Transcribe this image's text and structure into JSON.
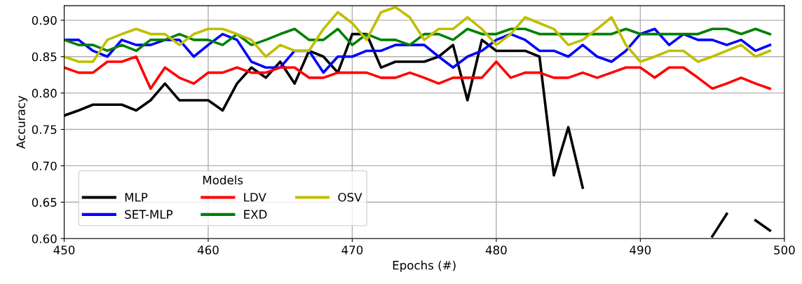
{
  "chart_data": {
    "type": "line",
    "xlabel": "Epochs (#)",
    "ylabel": "Accuracy",
    "legend_title": "Models",
    "x": [
      450,
      451,
      452,
      453,
      454,
      455,
      456,
      457,
      458,
      459,
      460,
      461,
      462,
      463,
      464,
      465,
      466,
      467,
      468,
      469,
      470,
      471,
      472,
      473,
      474,
      475,
      476,
      477,
      478,
      479,
      480,
      481,
      482,
      483,
      484,
      485,
      486,
      487,
      488,
      489,
      490,
      491,
      492,
      493,
      494,
      495,
      496,
      497,
      498,
      499
    ],
    "series": [
      {
        "name": "MLP",
        "color": "#000000",
        "values": [
          0.769,
          0.776,
          0.784,
          0.784,
          0.784,
          0.776,
          0.79,
          0.813,
          0.79,
          0.79,
          0.79,
          0.776,
          0.813,
          0.835,
          0.821,
          0.843,
          0.813,
          0.858,
          0.85,
          0.828,
          0.881,
          0.881,
          0.835,
          0.843,
          0.843,
          0.843,
          0.85,
          0.866,
          0.79,
          0.873,
          0.858,
          0.858,
          0.858,
          0.85,
          0.687,
          0.753,
          0.67,
          null,
          null,
          null,
          null,
          null,
          null,
          null,
          null,
          0.603,
          0.634,
          null,
          0.625,
          0.611
        ]
      },
      {
        "name": "SET-MLP",
        "color": "#0000ff",
        "values": [
          0.873,
          0.873,
          0.858,
          0.85,
          0.873,
          0.866,
          0.866,
          0.873,
          0.873,
          0.85,
          0.866,
          0.881,
          0.873,
          0.843,
          0.835,
          0.835,
          0.858,
          0.858,
          0.828,
          0.85,
          0.85,
          0.858,
          0.858,
          0.866,
          0.866,
          0.866,
          0.85,
          0.835,
          0.85,
          0.858,
          0.873,
          0.881,
          0.873,
          0.858,
          0.858,
          0.85,
          0.866,
          0.85,
          0.843,
          0.858,
          0.881,
          0.888,
          0.866,
          0.881,
          0.873,
          0.873,
          0.866,
          0.873,
          0.858,
          0.866
        ]
      },
      {
        "name": "LDV",
        "color": "#ff0000",
        "values": [
          0.835,
          0.828,
          0.828,
          0.843,
          0.843,
          0.85,
          0.806,
          0.835,
          0.821,
          0.813,
          0.828,
          0.828,
          0.835,
          0.828,
          0.828,
          0.835,
          0.835,
          0.821,
          0.821,
          0.828,
          0.828,
          0.828,
          0.821,
          0.821,
          0.828,
          0.821,
          0.813,
          0.821,
          0.821,
          0.821,
          0.843,
          0.821,
          0.828,
          0.828,
          0.821,
          0.821,
          0.828,
          0.821,
          0.828,
          0.835,
          0.835,
          0.821,
          0.835,
          0.835,
          0.821,
          0.806,
          0.813,
          0.821,
          0.813,
          0.806
        ]
      },
      {
        "name": "EXD",
        "color": "#008000",
        "values": [
          0.873,
          0.866,
          0.866,
          0.858,
          0.866,
          0.858,
          0.873,
          0.873,
          0.881,
          0.873,
          0.873,
          0.866,
          0.881,
          0.866,
          0.873,
          0.881,
          0.888,
          0.873,
          0.873,
          0.888,
          0.866,
          0.881,
          0.873,
          0.873,
          0.866,
          0.881,
          0.881,
          0.873,
          0.888,
          0.881,
          0.881,
          0.888,
          0.888,
          0.881,
          0.881,
          0.881,
          0.881,
          0.881,
          0.881,
          0.888,
          0.881,
          0.881,
          0.881,
          0.881,
          0.881,
          0.888,
          0.888,
          0.881,
          0.888,
          0.881
        ]
      },
      {
        "name": "OSV",
        "color": "#bfbf00",
        "values": [
          0.85,
          0.843,
          0.843,
          0.873,
          0.881,
          0.888,
          0.881,
          0.881,
          0.866,
          0.881,
          0.888,
          0.888,
          0.881,
          0.873,
          0.85,
          0.866,
          0.858,
          0.858,
          0.888,
          0.911,
          0.896,
          0.873,
          0.911,
          0.918,
          0.904,
          0.873,
          0.888,
          0.888,
          0.904,
          0.888,
          0.866,
          0.881,
          0.904,
          0.896,
          0.888,
          0.866,
          0.873,
          0.888,
          0.904,
          0.866,
          0.843,
          0.85,
          0.858,
          0.858,
          0.843,
          0.85,
          0.858,
          0.866,
          0.85,
          0.858
        ]
      }
    ],
    "xlim": [
      450,
      500
    ],
    "ylim": [
      0.6,
      0.92
    ],
    "xticks": [
      450,
      460,
      470,
      480,
      490,
      500
    ],
    "yticks": [
      {
        "value": 0.6,
        "label": "0.60"
      },
      {
        "value": 0.65,
        "label": "0.65"
      },
      {
        "value": 0.7,
        "label": "0.70"
      },
      {
        "value": 0.75,
        "label": "0.75"
      },
      {
        "value": 0.8,
        "label": "0.80"
      },
      {
        "value": 0.85,
        "label": "0.85"
      },
      {
        "value": 0.9,
        "label": "0.90"
      }
    ],
    "grid": true,
    "legend": "bottom left",
    "line_style": "solid",
    "marker": "none"
  }
}
